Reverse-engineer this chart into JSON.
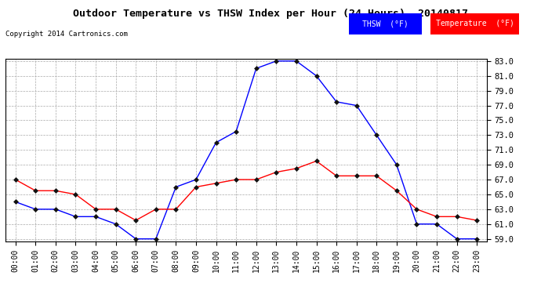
{
  "title": "Outdoor Temperature vs THSW Index per Hour (24 Hours)  20140817",
  "copyright": "Copyright 2014 Cartronics.com",
  "hours": [
    "00:00",
    "01:00",
    "02:00",
    "03:00",
    "04:00",
    "05:00",
    "06:00",
    "07:00",
    "08:00",
    "09:00",
    "10:00",
    "11:00",
    "12:00",
    "13:00",
    "14:00",
    "15:00",
    "16:00",
    "17:00",
    "18:00",
    "19:00",
    "20:00",
    "21:00",
    "22:00",
    "23:00"
  ],
  "thsw": [
    64.0,
    63.0,
    63.0,
    62.0,
    62.0,
    61.0,
    59.0,
    59.0,
    66.0,
    67.0,
    72.0,
    73.5,
    82.0,
    83.0,
    83.0,
    81.0,
    77.5,
    77.0,
    73.0,
    69.0,
    61.0,
    61.0,
    59.0,
    59.0
  ],
  "temperature": [
    67.0,
    65.5,
    65.5,
    65.0,
    63.0,
    63.0,
    61.5,
    63.0,
    63.0,
    66.0,
    66.5,
    67.0,
    67.0,
    68.0,
    68.5,
    69.5,
    67.5,
    67.5,
    67.5,
    65.5,
    63.0,
    62.0,
    62.0,
    61.5
  ],
  "thsw_color": "#0000ff",
  "temp_color": "#ff0000",
  "background_color": "#ffffff",
  "grid_color": "#aaaaaa",
  "ylim_min": 59.0,
  "ylim_max": 83.0,
  "ytick_step": 2.0,
  "legend_thsw_bg": "#0000ff",
  "legend_temp_bg": "#ff0000",
  "legend_thsw_label": "THSW  (°F)",
  "legend_temp_label": "Temperature  (°F)"
}
